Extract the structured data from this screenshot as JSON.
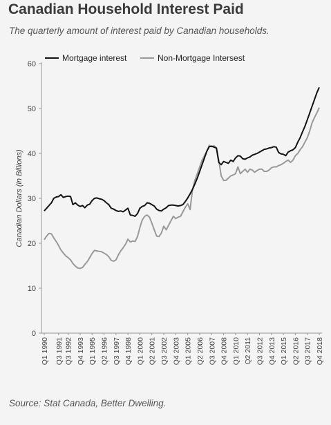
{
  "title": "Canadian Household Interest Paid",
  "subtitle": "The quarterly amount of interest paid by Canadian households.",
  "source": "Source: Stat Canada, Better Dwelling.",
  "colors": {
    "background": "#f4f4f4",
    "mortgage": "#111111",
    "non_mortgage": "#999999",
    "axis": "#999999"
  },
  "chart_data": {
    "type": "line",
    "title": "",
    "xlabel": "",
    "ylabel": "Canadian Dollars (in Billions)",
    "ylim": [
      0,
      60
    ],
    "yticks": [
      0,
      10,
      20,
      30,
      40,
      50,
      60
    ],
    "grid": false,
    "legend_position": "top-left",
    "xtick_labels": [
      {
        "index": 0,
        "label": "Q1 1990"
      },
      {
        "index": 6,
        "label": "Q3 1991"
      },
      {
        "index": 10,
        "label": "Q3 1992"
      },
      {
        "index": 15,
        "label": "Q4 1993"
      },
      {
        "index": 20,
        "label": "Q1 1995"
      },
      {
        "index": 25,
        "label": "Q2 1996"
      },
      {
        "index": 30,
        "label": "Q3 1997"
      },
      {
        "index": 35,
        "label": "Q4 1998"
      },
      {
        "index": 40,
        "label": "Q1 2000"
      },
      {
        "index": 45,
        "label": "Q2 2001"
      },
      {
        "index": 50,
        "label": "Q3 2002"
      },
      {
        "index": 55,
        "label": "Q4 2003"
      },
      {
        "index": 60,
        "label": "Q1 2005"
      },
      {
        "index": 65,
        "label": "Q2 2006"
      },
      {
        "index": 70,
        "label": "Q3 2007"
      },
      {
        "index": 75,
        "label": "Q4 2008"
      },
      {
        "index": 80,
        "label": "Q1 2010"
      },
      {
        "index": 85,
        "label": "Q2 2011"
      },
      {
        "index": 90,
        "label": "Q3 2012"
      },
      {
        "index": 95,
        "label": "Q4 2013"
      },
      {
        "index": 100,
        "label": "Q1 2015"
      },
      {
        "index": 105,
        "label": "Q2 2016"
      },
      {
        "index": 110,
        "label": "Q3 2017"
      },
      {
        "index": 115,
        "label": "Q4 2018"
      }
    ],
    "series": [
      {
        "name": "Mortgage interest",
        "values": [
          27.2,
          27.8,
          28.4,
          29.0,
          30.0,
          30.3,
          30.4,
          30.8,
          30.2,
          30.4,
          30.5,
          30.4,
          28.6,
          29.0,
          28.5,
          28.2,
          28.4,
          27.9,
          28.5,
          28.7,
          29.5,
          30.0,
          30.1,
          29.9,
          29.8,
          29.5,
          29.0,
          28.6,
          27.8,
          27.6,
          27.3,
          27.1,
          27.2,
          27.0,
          27.4,
          27.8,
          26.3,
          26.2,
          26.0,
          26.6,
          27.8,
          28.2,
          28.4,
          29.0,
          28.9,
          28.6,
          28.3,
          27.6,
          27.3,
          27.2,
          27.6,
          27.9,
          28.4,
          28.5,
          28.5,
          28.4,
          28.3,
          28.4,
          28.6,
          29.3,
          30.1,
          31.0,
          32.0,
          33.2,
          34.5,
          36.0,
          37.5,
          39.0,
          40.5,
          41.5,
          41.6,
          41.4,
          41.2,
          38.0,
          37.5,
          38.2,
          38.0,
          37.8,
          38.5,
          38.2,
          39.0,
          39.5,
          39.4,
          38.8,
          38.7,
          39.0,
          39.2,
          39.6,
          39.8,
          40.0,
          40.3,
          40.6,
          40.9,
          41.0,
          41.2,
          41.3,
          41.5,
          41.4,
          40.2,
          39.9,
          39.8,
          39.5,
          40.3,
          40.6,
          40.8,
          41.3,
          42.5,
          43.5,
          44.8,
          46.0,
          47.5,
          49.0,
          50.5,
          52.0,
          53.5,
          54.7
        ]
      },
      {
        "name": "Non-Mortgage Intersest",
        "values": [
          20.8,
          21.6,
          22.2,
          22.1,
          21.2,
          20.4,
          19.5,
          18.5,
          17.8,
          17.2,
          16.8,
          16.3,
          15.5,
          14.9,
          14.5,
          14.4,
          14.6,
          15.3,
          15.9,
          16.8,
          17.7,
          18.4,
          18.3,
          18.2,
          18.1,
          17.8,
          17.5,
          17.0,
          16.2,
          16.0,
          16.3,
          17.4,
          18.3,
          19.0,
          19.8,
          20.9,
          20.3,
          20.5,
          20.4,
          21.5,
          23.5,
          25.2,
          26.0,
          26.3,
          25.8,
          24.5,
          23.0,
          21.6,
          21.5,
          22.3,
          23.8,
          23.0,
          24.0,
          25.0,
          26.0,
          25.5,
          25.8,
          26.0,
          27.0,
          28.0,
          28.8,
          27.5,
          32.0,
          34.0,
          35.5,
          37.0,
          38.5,
          39.5,
          40.5,
          41.8,
          41.5,
          41.7,
          41.2,
          38.5,
          35.0,
          34.0,
          34.0,
          34.5,
          35.0,
          35.2,
          35.5,
          37.0,
          35.5,
          36.0,
          36.5,
          35.8,
          36.5,
          36.3,
          35.8,
          36.2,
          36.5,
          36.5,
          36.0,
          36.0,
          36.3,
          36.8,
          37.0,
          37.0,
          37.3,
          37.5,
          37.8,
          38.2,
          38.5,
          38.0,
          38.5,
          39.5,
          40.0,
          40.8,
          41.5,
          42.5,
          43.5,
          45.0,
          46.8,
          48.0,
          49.0,
          50.2
        ]
      }
    ]
  }
}
